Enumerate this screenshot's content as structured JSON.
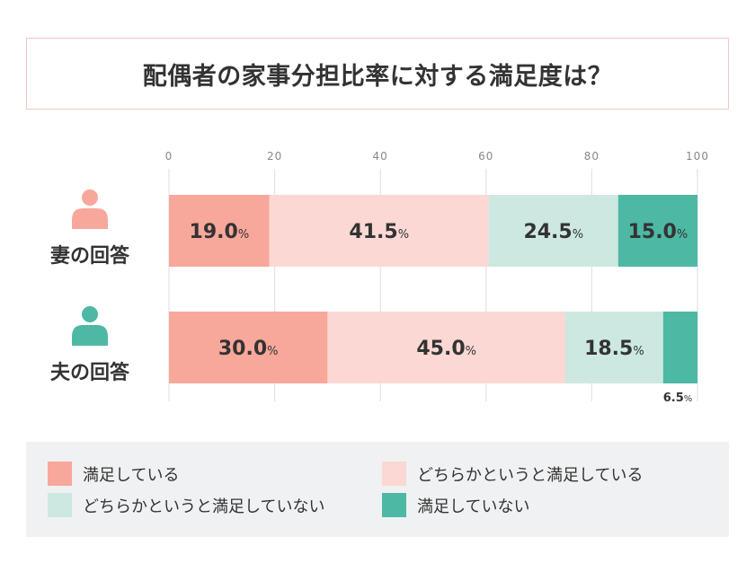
{
  "title": "配偶者の家事分担比率に対する満足度は？",
  "colors": {
    "satisfied": "#f8a79b",
    "somewhat_satisfied": "#fbd8d3",
    "somewhat_unsatisfied": "#cce8e1",
    "unsatisfied": "#4db8a4",
    "person_wife": "#f8a79b",
    "person_husband": "#4db8a4"
  },
  "chart_data": {
    "type": "bar",
    "orientation": "horizontal-stacked",
    "title": "配偶者の家事分担比率に対する満足度は？",
    "xlim": [
      0,
      100
    ],
    "xticks": [
      "0",
      "20",
      "40",
      "60",
      "80",
      "100"
    ],
    "grid": true,
    "legend_placement": "bottom",
    "unit": "%",
    "categories": [
      "妻の回答",
      "夫の回答"
    ],
    "category_icons": [
      "person-icon",
      "person-icon"
    ],
    "series": [
      {
        "name": "満足している",
        "values": [
          19.0,
          30.0
        ]
      },
      {
        "name": "どちらかというと満足している",
        "values": [
          41.5,
          45.0
        ]
      },
      {
        "name": "どちらかというと満足していない",
        "values": [
          24.5,
          18.5
        ]
      },
      {
        "name": "満足していない",
        "values": [
          15.0,
          6.5
        ]
      }
    ],
    "value_labels": [
      [
        "19.0",
        "41.5",
        "24.5",
        "15.0"
      ],
      [
        "30.0",
        "45.0",
        "18.5",
        "6.5"
      ]
    ]
  },
  "legend": [
    {
      "label": "満足している"
    },
    {
      "label": "どちらかというと満足している"
    },
    {
      "label": "どちらかというと満足していない"
    },
    {
      "label": "満足していない"
    }
  ]
}
